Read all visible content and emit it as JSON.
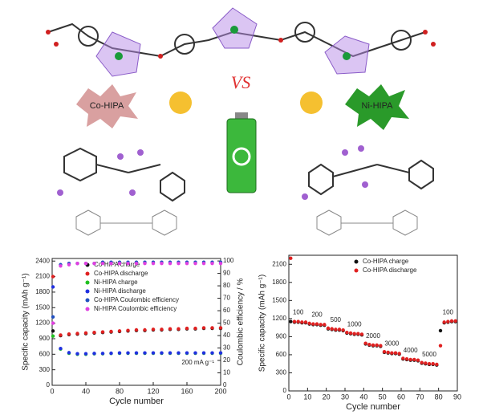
{
  "labels": {
    "left": "Co-HIPA",
    "vs": "VS",
    "right": "Ni-HIPA"
  },
  "chart_data": [
    {
      "type": "scatter",
      "xlabel": "Cycle number",
      "ylabel": "Specific capacity (mAh g⁻¹)",
      "y2label": "Coulombic efficiency / %",
      "annotation": "200 mA g⁻¹",
      "legend": "top-left",
      "xlim": [
        0,
        200
      ],
      "xticks": [
        0,
        40,
        80,
        120,
        160,
        200
      ],
      "ylim": [
        0,
        2450
      ],
      "yticks": [
        0,
        300,
        600,
        900,
        1200,
        1500,
        1800,
        2100,
        2400
      ],
      "y2lim": [
        0,
        102
      ],
      "y2ticks": [
        0,
        10,
        20,
        30,
        40,
        50,
        60,
        70,
        80,
        90,
        100
      ],
      "x": [
        1,
        10,
        20,
        30,
        40,
        50,
        60,
        70,
        80,
        90,
        100,
        110,
        120,
        130,
        140,
        150,
        160,
        170,
        180,
        190,
        200
      ],
      "series": [
        {
          "name": "Co-HIPA charge",
          "color": "#111111",
          "values": [
            1050,
            960,
            980,
            990,
            1000,
            1010,
            1020,
            1030,
            1040,
            1050,
            1060,
            1060,
            1070,
            1070,
            1080,
            1080,
            1090,
            1090,
            1100,
            1100,
            1100
          ]
        },
        {
          "name": "Co-HIPA discharge",
          "color": "#e02020",
          "values": [
            2100,
            970,
            990,
            1000,
            1010,
            1020,
            1030,
            1040,
            1050,
            1060,
            1070,
            1070,
            1080,
            1080,
            1090,
            1090,
            1100,
            1100,
            1110,
            1110,
            1110
          ]
        },
        {
          "name": "Ni-HIPA  charge",
          "color": "#20c020",
          "values": [
            950,
            700,
            620,
            600,
            600,
            610,
            610,
            615,
            620,
            620,
            620,
            620,
            620,
            620,
            620,
            620,
            620,
            620,
            620,
            620,
            620
          ]
        },
        {
          "name": "Ni-HIPA  discharge",
          "color": "#2030e0",
          "values": [
            1900,
            710,
            630,
            610,
            610,
            615,
            615,
            620,
            625,
            625,
            625,
            625,
            625,
            625,
            625,
            625,
            625,
            625,
            625,
            625,
            625
          ]
        },
        {
          "name": "Co-HIPA Coulombic efficiency",
          "color": "#2050c0",
          "axis": "y2",
          "values": [
            55,
            97,
            98,
            98,
            98,
            98,
            99,
            99,
            99,
            99,
            99,
            99,
            99,
            99,
            99,
            99,
            99,
            99,
            99,
            99,
            99
          ]
        },
        {
          "name": "Ni-HIPA  Coulombic efficiency",
          "color": "#e040e0",
          "axis": "y2",
          "values": [
            50,
            96,
            97,
            98,
            98,
            98,
            98,
            98,
            98,
            98,
            98,
            98,
            98,
            98,
            98,
            98,
            98,
            98,
            98,
            98,
            98
          ]
        }
      ]
    },
    {
      "type": "scatter",
      "xlabel": "Cycle number",
      "ylabel": "Specific capacity (mAh g⁻¹)",
      "legend": "top-right",
      "step_labels": [
        "100",
        "200",
        "500",
        "1000",
        "2000",
        "3000",
        "4000",
        "5000",
        "100"
      ],
      "xlim": [
        0,
        90
      ],
      "xticks": [
        0,
        10,
        20,
        30,
        40,
        50,
        60,
        70,
        80,
        90
      ],
      "ylim": [
        0,
        2250
      ],
      "yticks": [
        0,
        300,
        600,
        900,
        1200,
        1500,
        1800,
        2100
      ],
      "x": [
        1,
        3,
        5,
        7,
        9,
        11,
        13,
        15,
        17,
        19,
        21,
        23,
        25,
        27,
        29,
        31,
        33,
        35,
        37,
        39,
        41,
        43,
        45,
        47,
        49,
        51,
        53,
        55,
        57,
        59,
        61,
        63,
        65,
        67,
        69,
        71,
        73,
        75,
        77,
        79,
        81,
        83,
        85,
        87,
        89
      ],
      "series": [
        {
          "name": "Co-HIPA charge",
          "color": "#111111",
          "values": [
            1150,
            1140,
            1140,
            1130,
            1130,
            1110,
            1100,
            1100,
            1090,
            1090,
            1030,
            1020,
            1010,
            1010,
            1000,
            960,
            950,
            940,
            940,
            930,
            780,
            760,
            750,
            750,
            740,
            640,
            630,
            620,
            620,
            610,
            530,
            520,
            510,
            510,
            500,
            460,
            450,
            440,
            440,
            430,
            1000,
            1130,
            1140,
            1150,
            1150
          ]
        },
        {
          "name": "Co-HIPA discharge",
          "color": "#e02020",
          "values": [
            2200,
            1150,
            1150,
            1140,
            1140,
            1120,
            1110,
            1110,
            1100,
            1100,
            1040,
            1030,
            1020,
            1020,
            1010,
            970,
            960,
            950,
            950,
            940,
            790,
            770,
            760,
            760,
            750,
            650,
            640,
            630,
            630,
            620,
            540,
            530,
            520,
            520,
            510,
            470,
            460,
            450,
            450,
            440,
            750,
            1140,
            1150,
            1160,
            1160
          ]
        }
      ]
    }
  ]
}
